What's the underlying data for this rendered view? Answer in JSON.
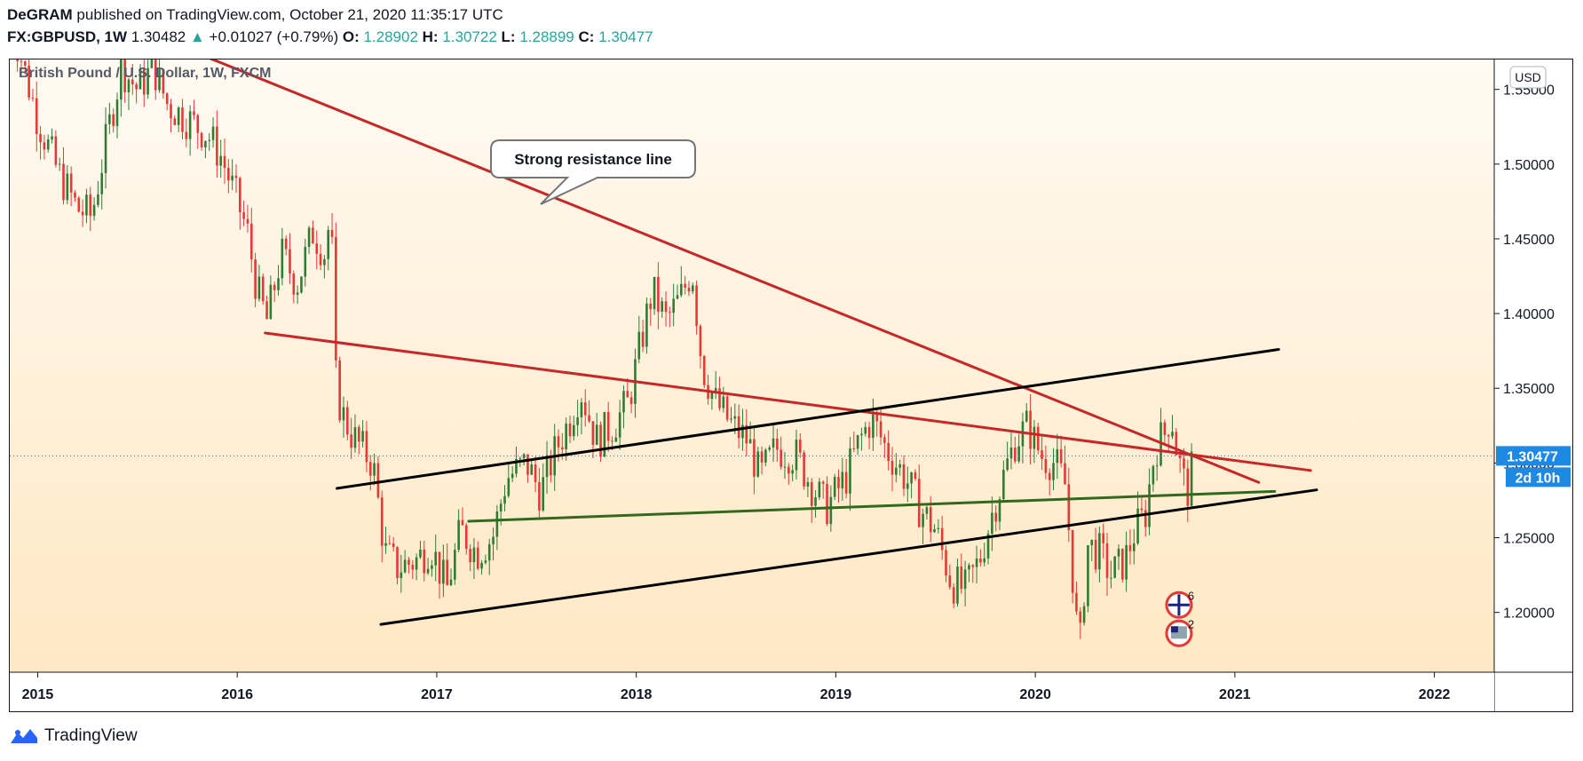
{
  "header": {
    "author": "DeGRAM",
    "published": "published on TradingView.com, October 21, 2020 11:35:17 UTC",
    "symbol": "FX:GBPUSD, 1W",
    "last": "1.30482",
    "change": "+0.01027 (+0.79%)",
    "open_label": "O:",
    "open": "1.28902",
    "high_label": "H:",
    "high": "1.30722",
    "low_label": "L:",
    "low": "1.28899",
    "close_label": "C:",
    "close": "1.30477"
  },
  "footer": {
    "brand": "TradingView"
  },
  "chart_data": {
    "type": "candlestick",
    "title": "British Pound / U.S. Dollar, 1W, FXCM",
    "currency_badge": "USD",
    "price_tag": "1.30477",
    "countdown_tag": "2d 10h",
    "last_price": 1.30477,
    "ylim": [
      1.16,
      1.57
    ],
    "xlim": [
      2014.86,
      2022.3
    ],
    "x_ticks": [
      "2015",
      "2016",
      "2017",
      "2018",
      "2019",
      "2020",
      "2021",
      "2022"
    ],
    "y_ticks": [
      "1.20000",
      "1.25000",
      "1.30000",
      "1.35000",
      "1.40000",
      "1.45000",
      "1.50000",
      "1.55000"
    ],
    "annotation": "Strong resistance line",
    "colors": {
      "up": "#2e7d32",
      "down": "#e53935",
      "resistance": "#c62828",
      "channel": "#000000",
      "support": "#33691e",
      "price_tag": "#1e88e5",
      "bg_top": "#fffaf2",
      "bg_bottom": "#ffe8c4"
    },
    "event_markers": [
      {
        "flag": "uk-flag-icon",
        "count": "6"
      },
      {
        "flag": "us-flag-icon",
        "count": "2"
      }
    ],
    "trend_lines": [
      {
        "name": "strong-resistance-line",
        "color": "#c62828",
        "from": [
          2015.6,
          1.585
        ],
        "to": [
          2021.12,
          1.287
        ]
      },
      {
        "name": "descending-resistance-line",
        "color": "#c62828",
        "from": [
          2016.14,
          1.387
        ],
        "to": [
          2021.38,
          1.295
        ]
      },
      {
        "name": "channel-upper-line",
        "color": "#000000",
        "from": [
          2016.5,
          1.283
        ],
        "to": [
          2021.22,
          1.376
        ]
      },
      {
        "name": "channel-lower-line",
        "color": "#000000",
        "from": [
          2016.72,
          1.192
        ],
        "to": [
          2021.41,
          1.282
        ]
      },
      {
        "name": "green-support-line",
        "color": "#33691e",
        "from": [
          2017.16,
          1.261
        ],
        "to": [
          2021.2,
          1.281
        ]
      }
    ],
    "price_path": [
      [
        2014.86,
        1.6
      ],
      [
        2015.0,
        1.53
      ],
      [
        2015.1,
        1.495
      ],
      [
        2015.2,
        1.47
      ],
      [
        2015.27,
        1.465
      ],
      [
        2015.35,
        1.52
      ],
      [
        2015.42,
        1.565
      ],
      [
        2015.5,
        1.55
      ],
      [
        2015.58,
        1.565
      ],
      [
        2015.65,
        1.54
      ],
      [
        2015.75,
        1.53
      ],
      [
        2015.85,
        1.52
      ],
      [
        2015.92,
        1.505
      ],
      [
        2016.0,
        1.475
      ],
      [
        2016.05,
        1.455
      ],
      [
        2016.1,
        1.415
      ],
      [
        2016.15,
        1.395
      ],
      [
        2016.22,
        1.44
      ],
      [
        2016.3,
        1.42
      ],
      [
        2016.38,
        1.455
      ],
      [
        2016.44,
        1.44
      ],
      [
        2016.47,
        1.47
      ],
      [
        2016.49,
        1.36
      ],
      [
        2016.52,
        1.335
      ],
      [
        2016.57,
        1.32
      ],
      [
        2016.62,
        1.31
      ],
      [
        2016.68,
        1.3
      ],
      [
        2016.74,
        1.24
      ],
      [
        2016.8,
        1.23
      ],
      [
        2016.9,
        1.235
      ],
      [
        2016.97,
        1.245
      ],
      [
        2017.05,
        1.215
      ],
      [
        2017.12,
        1.255
      ],
      [
        2017.2,
        1.24
      ],
      [
        2017.28,
        1.25
      ],
      [
        2017.35,
        1.29
      ],
      [
        2017.45,
        1.3
      ],
      [
        2017.52,
        1.28
      ],
      [
        2017.6,
        1.31
      ],
      [
        2017.67,
        1.33
      ],
      [
        2017.72,
        1.35
      ],
      [
        2017.8,
        1.315
      ],
      [
        2017.88,
        1.325
      ],
      [
        2017.96,
        1.34
      ],
      [
        2018.03,
        1.385
      ],
      [
        2018.08,
        1.415
      ],
      [
        2018.15,
        1.395
      ],
      [
        2018.22,
        1.41
      ],
      [
        2018.28,
        1.43
      ],
      [
        2018.33,
        1.365
      ],
      [
        2018.4,
        1.34
      ],
      [
        2018.48,
        1.325
      ],
      [
        2018.56,
        1.315
      ],
      [
        2018.62,
        1.29
      ],
      [
        2018.7,
        1.31
      ],
      [
        2018.8,
        1.305
      ],
      [
        2018.88,
        1.285
      ],
      [
        2018.95,
        1.27
      ],
      [
        2019.05,
        1.29
      ],
      [
        2019.12,
        1.315
      ],
      [
        2019.18,
        1.33
      ],
      [
        2019.25,
        1.31
      ],
      [
        2019.35,
        1.29
      ],
      [
        2019.42,
        1.27
      ],
      [
        2019.5,
        1.255
      ],
      [
        2019.58,
        1.22
      ],
      [
        2019.65,
        1.215
      ],
      [
        2019.72,
        1.235
      ],
      [
        2019.78,
        1.265
      ],
      [
        2019.85,
        1.295
      ],
      [
        2019.9,
        1.315
      ],
      [
        2019.96,
        1.325
      ],
      [
        2020.03,
        1.305
      ],
      [
        2020.1,
        1.3
      ],
      [
        2020.15,
        1.285
      ],
      [
        2020.19,
        1.22
      ],
      [
        2020.22,
        1.17
      ],
      [
        2020.26,
        1.245
      ],
      [
        2020.32,
        1.24
      ],
      [
        2020.38,
        1.225
      ],
      [
        2020.45,
        1.235
      ],
      [
        2020.5,
        1.255
      ],
      [
        2020.55,
        1.265
      ],
      [
        2020.6,
        1.31
      ],
      [
        2020.65,
        1.32
      ],
      [
        2020.68,
        1.335
      ],
      [
        2020.7,
        1.315
      ],
      [
        2020.73,
        1.295
      ],
      [
        2020.76,
        1.28
      ],
      [
        2020.8,
        1.3045
      ]
    ]
  }
}
